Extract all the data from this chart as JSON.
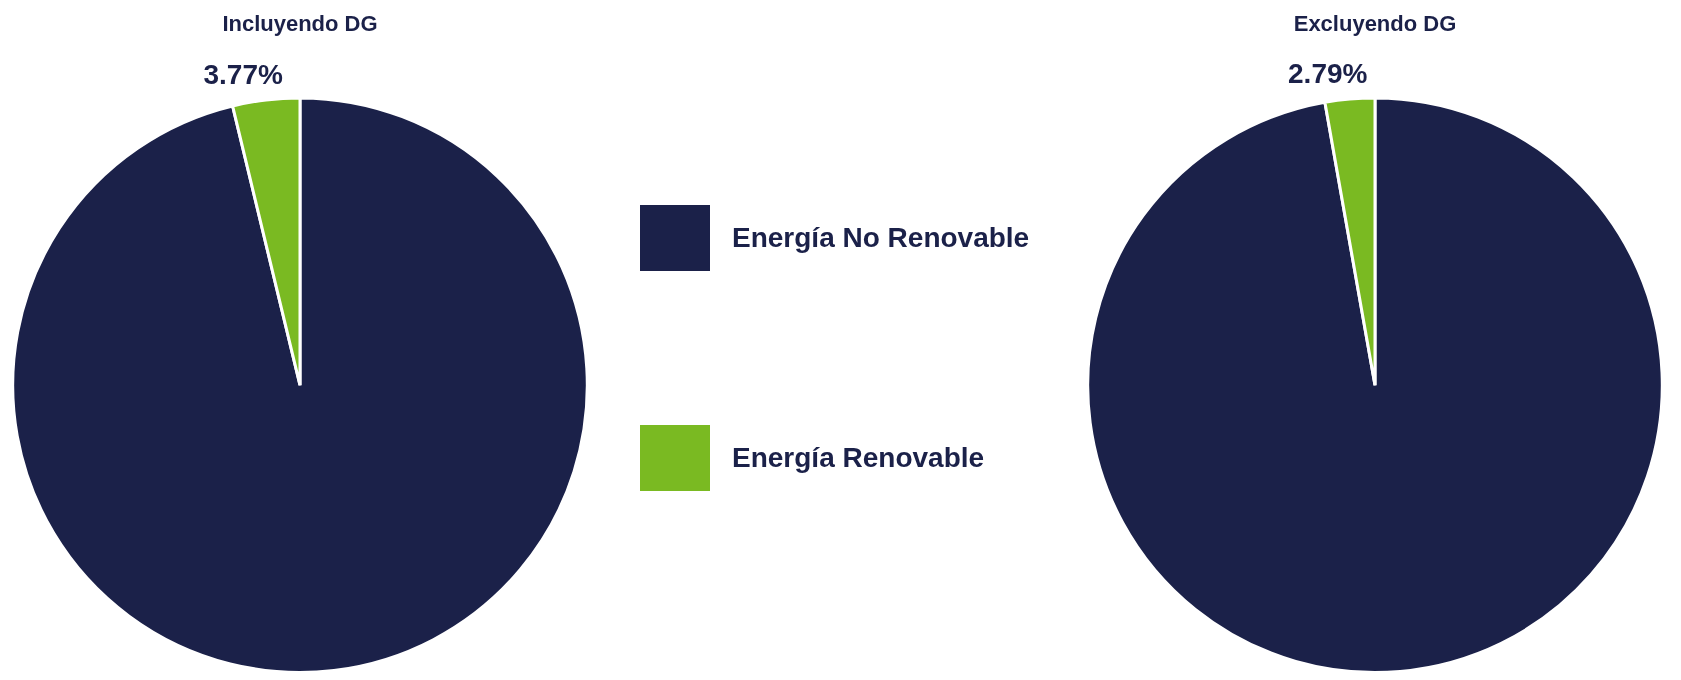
{
  "chart_data": [
    {
      "type": "pie",
      "title": "Incluyendo DG",
      "categories": [
        "Energía No Renovable",
        "Energía Renovable"
      ],
      "values": [
        96.23,
        3.77
      ],
      "colors": [
        "#1b2149",
        "#7aba22"
      ],
      "value_labels": [
        null,
        "3.77%"
      ],
      "legend": "right"
    },
    {
      "type": "pie",
      "title": "Excluyendo DG",
      "categories": [
        null,
        null
      ],
      "values": [
        97.21,
        2.79
      ],
      "colors": [
        "#1b2149",
        "#7aba22"
      ],
      "value_labels": [
        null,
        "2.79%"
      ]
    }
  ]
}
